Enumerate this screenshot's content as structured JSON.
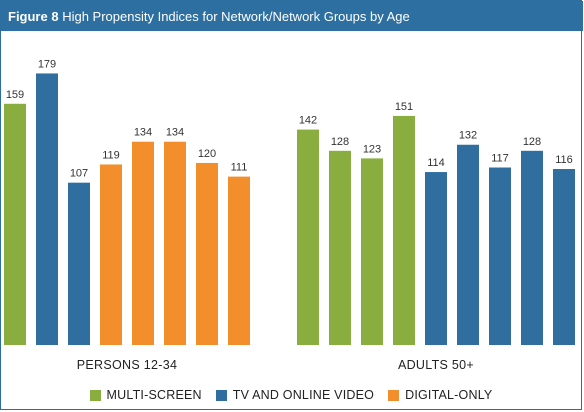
{
  "header": {
    "figure_label": "Figure 8",
    "title": "High Propensity Indices for Network/Network Groups by Age"
  },
  "colors": {
    "header_bg": "#2c6fa0",
    "multi_screen": "#8aad3f",
    "tv_online_video": "#2f6e9f",
    "digital_only": "#f28f2c",
    "label_text": "#333333"
  },
  "legend": [
    {
      "label": "MULTI-SCREEN",
      "color": "#8aad3f"
    },
    {
      "label": "TV AND ONLINE VIDEO",
      "color": "#2f6e9f"
    },
    {
      "label": "DIGITAL-ONLY",
      "color": "#f28f2c"
    }
  ],
  "chart_data": {
    "type": "bar",
    "ylim": [
      0,
      205
    ],
    "grid": false,
    "legend_position": "bottom",
    "groups": [
      {
        "label": "PERSONS 12-34",
        "bars": [
          {
            "value": 159,
            "series": "MULTI-SCREEN"
          },
          {
            "value": 179,
            "series": "TV AND ONLINE VIDEO"
          },
          {
            "value": 107,
            "series": "TV AND ONLINE VIDEO"
          },
          {
            "value": 119,
            "series": "DIGITAL-ONLY"
          },
          {
            "value": 134,
            "series": "DIGITAL-ONLY"
          },
          {
            "value": 134,
            "series": "DIGITAL-ONLY"
          },
          {
            "value": 120,
            "series": "DIGITAL-ONLY"
          },
          {
            "value": 111,
            "series": "DIGITAL-ONLY"
          }
        ]
      },
      {
        "label": "ADULTS 50+",
        "bars": [
          {
            "value": 142,
            "series": "MULTI-SCREEN"
          },
          {
            "value": 128,
            "series": "MULTI-SCREEN"
          },
          {
            "value": 123,
            "series": "MULTI-SCREEN"
          },
          {
            "value": 151,
            "series": "MULTI-SCREEN"
          },
          {
            "value": 114,
            "series": "TV AND ONLINE VIDEO"
          },
          {
            "value": 132,
            "series": "TV AND ONLINE VIDEO"
          },
          {
            "value": 117,
            "series": "TV AND ONLINE VIDEO"
          },
          {
            "value": 128,
            "series": "TV AND ONLINE VIDEO"
          },
          {
            "value": 116,
            "series": "TV AND ONLINE VIDEO"
          }
        ]
      }
    ]
  }
}
